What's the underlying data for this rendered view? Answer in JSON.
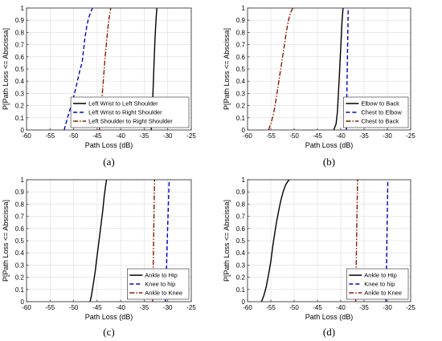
{
  "chart_data": [
    {
      "type": "line",
      "panel_label": "(a)",
      "xlabel": "Path Loss (dB)",
      "ylabel": "P[Path Loss <= Abscissa]",
      "xlim": [
        -60,
        -25
      ],
      "ylim": [
        0,
        1
      ],
      "xticks": [
        "-60",
        "-55",
        "-50",
        "-45",
        "-40",
        "-35",
        "-30",
        "-25"
      ],
      "yticks": [
        "0",
        "0.1",
        "0.2",
        "0.3",
        "0.4",
        "0.5",
        "0.6",
        "0.7",
        "0.8",
        "0.9",
        "1"
      ],
      "grid": true,
      "legend_position": "bottom-right",
      "series": [
        {
          "name": "Left Wrist to Left Shoulder",
          "style": "solid",
          "color": "#000000",
          "x": [
            -33.5,
            -33.3,
            -33.1,
            -32.9,
            -32.7,
            -32.5,
            -32.3
          ],
          "y": [
            0,
            0.15,
            0.35,
            0.55,
            0.75,
            0.9,
            1
          ]
        },
        {
          "name": "Left Wrist to Right Shoulder",
          "style": "dashed",
          "color": "#0000cc",
          "x": [
            -52,
            -51.3,
            -50.5,
            -49.8,
            -49.2,
            -48.6,
            -48.2,
            -47.9,
            -47.6,
            -47.2,
            -46.8,
            -46.3,
            -46
          ],
          "y": [
            0,
            0.1,
            0.2,
            0.3,
            0.4,
            0.5,
            0.55,
            0.65,
            0.75,
            0.85,
            0.92,
            0.97,
            1
          ]
        },
        {
          "name": "Left Shoulder to Right Shoulder",
          "style": "dashdot",
          "color": "#8b1a00",
          "x": [
            -44.5,
            -44.2,
            -43.9,
            -43.6,
            -43.3,
            -43,
            -42.7,
            -42.4,
            -42.1
          ],
          "y": [
            0,
            0.15,
            0.3,
            0.45,
            0.6,
            0.72,
            0.84,
            0.93,
            1
          ]
        }
      ]
    },
    {
      "type": "line",
      "panel_label": "(b)",
      "xlabel": "Path Loss (dB)",
      "ylabel": "P[Path Loss <= Abscissa]",
      "xlim": [
        -60,
        -25
      ],
      "ylim": [
        0,
        1
      ],
      "xticks": [
        "-60",
        "-55",
        "-50",
        "-45",
        "-40",
        "-35",
        "-30",
        "-25"
      ],
      "yticks": [
        "0",
        "0.1",
        "0.2",
        "0.3",
        "0.4",
        "0.5",
        "0.6",
        "0.7",
        "0.8",
        "0.9",
        "1"
      ],
      "grid": true,
      "legend_position": "bottom-right",
      "series": [
        {
          "name": "Elbow to Back",
          "style": "solid",
          "color": "#000000",
          "x": [
            -41.5,
            -41,
            -40.7,
            -40.5,
            -40.3,
            -40.1,
            -39.9,
            -39.7,
            -39.5
          ],
          "y": [
            0,
            0.05,
            0.15,
            0.3,
            0.45,
            0.6,
            0.75,
            0.9,
            1
          ]
        },
        {
          "name": "Chest to Elbow",
          "style": "dashed",
          "color": "#0000cc",
          "x": [
            -38.8,
            -38.7,
            -38.6,
            -38.5,
            -38.4
          ],
          "y": [
            0,
            0.25,
            0.5,
            0.75,
            1
          ]
        },
        {
          "name": "Chest to Back",
          "style": "dashdot",
          "color": "#8b1a00",
          "x": [
            -55.5,
            -55,
            -54.5,
            -54,
            -53.6,
            -53.2,
            -52.8,
            -52.4,
            -52,
            -51.6,
            -51.2,
            -50.8,
            -50.3
          ],
          "y": [
            0,
            0.05,
            0.12,
            0.22,
            0.32,
            0.42,
            0.52,
            0.62,
            0.72,
            0.82,
            0.9,
            0.96,
            1
          ]
        }
      ]
    },
    {
      "type": "line",
      "panel_label": "(c)",
      "xlabel": "Path Loss (dB)",
      "ylabel": "P[Path Loss <= Abscissa]",
      "xlim": [
        -60,
        -25
      ],
      "ylim": [
        0,
        1
      ],
      "xticks": [
        "-60",
        "-55",
        "-50",
        "-45",
        "-40",
        "-35",
        "-30",
        "-25"
      ],
      "yticks": [
        "0",
        "0.1",
        "0.2",
        "0.3",
        "0.4",
        "0.5",
        "0.6",
        "0.7",
        "0.8",
        "0.9",
        "1"
      ],
      "grid": true,
      "legend_position": "bottom-right",
      "series": [
        {
          "name": "Ankle to Hip",
          "style": "solid",
          "color": "#000000",
          "x": [
            -46.5,
            -46.2,
            -45.8,
            -45.4,
            -45,
            -44.6,
            -44.2,
            -43.8,
            -43.5,
            -43.2,
            -43
          ],
          "y": [
            0,
            0.05,
            0.15,
            0.25,
            0.38,
            0.5,
            0.62,
            0.75,
            0.86,
            0.95,
            1
          ]
        },
        {
          "name": "Knee to hip",
          "style": "dashed",
          "color": "#0000cc",
          "x": [
            -30.5,
            -30.3,
            -30.1,
            -29.9,
            -29.7
          ],
          "y": [
            0,
            0.25,
            0.5,
            0.75,
            1
          ]
        },
        {
          "name": "Ankle to Knee",
          "style": "dashdot",
          "color": "#8b1a00",
          "x": [
            -33.2,
            -33.1,
            -33,
            -32.9,
            -32.8
          ],
          "y": [
            0,
            0.25,
            0.5,
            0.75,
            1
          ]
        }
      ]
    },
    {
      "type": "line",
      "panel_label": "(d)",
      "xlabel": "Path Loss (dB)",
      "ylabel": "P[Path Loss <= Abscissa]",
      "xlim": [
        -60,
        -25
      ],
      "ylim": [
        0,
        1
      ],
      "xticks": [
        "-60",
        "-55",
        "-50",
        "-45",
        "-40",
        "-35",
        "-30",
        "-25"
      ],
      "yticks": [
        "0",
        "0.1",
        "0.2",
        "0.3",
        "0.4",
        "0.5",
        "0.6",
        "0.7",
        "0.8",
        "0.9",
        "1"
      ],
      "grid": true,
      "legend_position": "bottom-right",
      "series": [
        {
          "name": "Ankle to Hip",
          "style": "solid",
          "color": "#000000",
          "x": [
            -57,
            -56.5,
            -56,
            -55.5,
            -55,
            -54.6,
            -54.2,
            -53.8,
            -53.3,
            -52.8,
            -52.3,
            -51.8,
            -51.3,
            -51
          ],
          "y": [
            0,
            0.05,
            0.12,
            0.22,
            0.33,
            0.45,
            0.55,
            0.65,
            0.75,
            0.84,
            0.91,
            0.96,
            0.99,
            1
          ]
        },
        {
          "name": "Knee to hip",
          "style": "dashed",
          "color": "#0000cc",
          "x": [
            -30.3,
            -30.2,
            -30.1,
            -30,
            -29.9
          ],
          "y": [
            0,
            0.25,
            0.5,
            0.75,
            1
          ]
        },
        {
          "name": "Ankle to Knee",
          "style": "dashdot",
          "color": "#8b1a00",
          "x": [
            -36.8,
            -36.7,
            -36.6,
            -36.5,
            -36.4
          ],
          "y": [
            0,
            0.25,
            0.5,
            0.75,
            1
          ]
        }
      ]
    }
  ]
}
